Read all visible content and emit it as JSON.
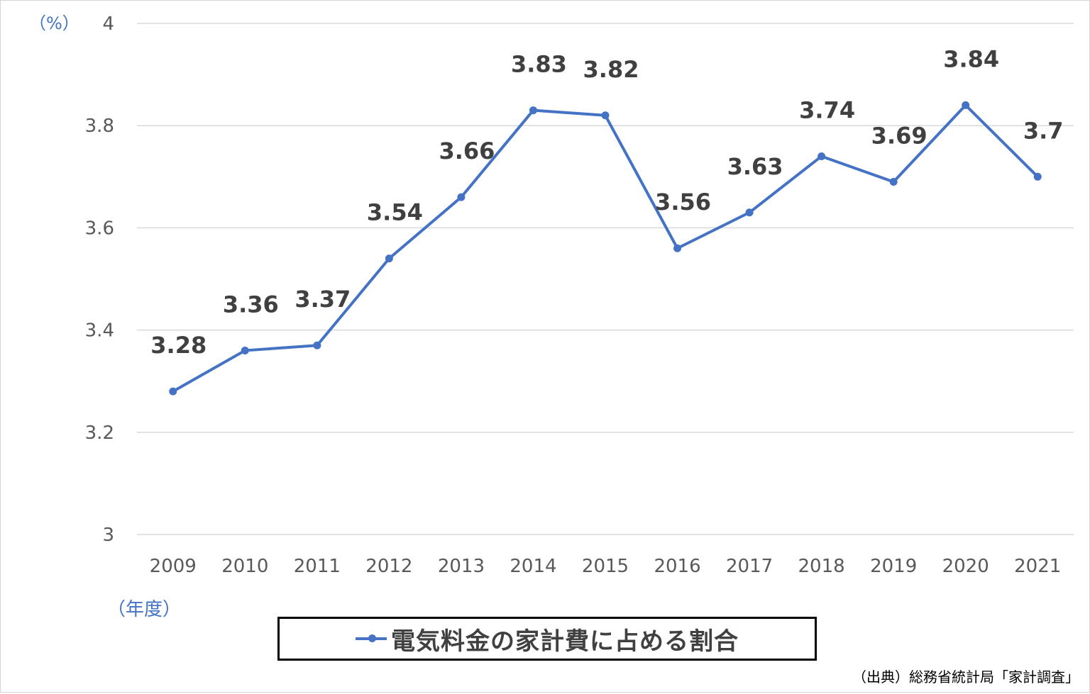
{
  "chart_data": {
    "type": "line",
    "title": "",
    "y_unit": "（%）",
    "x_unit": "（年度）",
    "categories": [
      "2009",
      "2010",
      "2011",
      "2012",
      "2013",
      "2014",
      "2015",
      "2016",
      "2017",
      "2018",
      "2019",
      "2020",
      "2021"
    ],
    "series": [
      {
        "name": "電気料金の家計費に占める割合",
        "values": [
          3.28,
          3.36,
          3.37,
          3.54,
          3.66,
          3.83,
          3.82,
          3.56,
          3.63,
          3.74,
          3.69,
          3.84,
          3.7
        ],
        "labels": [
          "3.28",
          "3.36",
          "3.37",
          "3.54",
          "3.66",
          "3.83",
          "3.82",
          "3.56",
          "3.63",
          "3.74",
          "3.69",
          "3.84",
          "3.7"
        ],
        "color": "#4472c4"
      }
    ],
    "ylim": [
      3,
      4
    ],
    "yticks": [
      3,
      3.2,
      3.4,
      3.6,
      3.8,
      4
    ],
    "ytick_labels": [
      "3",
      "3.2",
      "3.4",
      "3.6",
      "3.8",
      "4"
    ],
    "grid": true,
    "legend_position": "bottom"
  },
  "source": "（出典）総務省統計局「家計調査」"
}
